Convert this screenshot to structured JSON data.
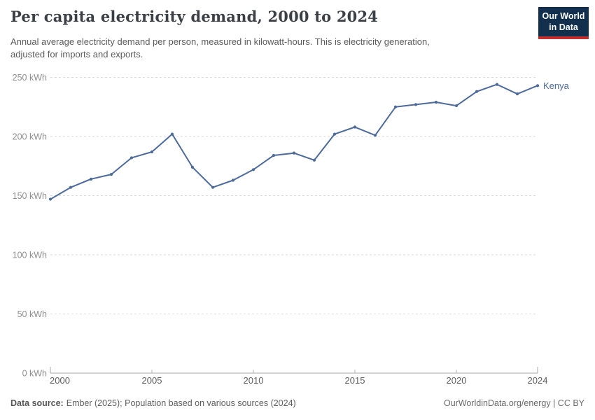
{
  "header": {
    "title": "Per capita electricity demand, 2000 to 2024",
    "subtitle_lines": {
      "line1": "Annual average electricity demand per person, measured in kilowatt-hours. This is electricity generation,",
      "line2": "adjusted for imports and exports."
    },
    "logo": {
      "line1": "Our World",
      "line2": "in Data",
      "bg_color": "#12304e",
      "stripe_color": "#c72f2f"
    }
  },
  "chart_data": {
    "type": "line",
    "title": "Per capita electricity demand, 2000 to 2024",
    "x": [
      2000,
      2001,
      2002,
      2003,
      2004,
      2005,
      2006,
      2007,
      2008,
      2009,
      2010,
      2011,
      2012,
      2013,
      2014,
      2015,
      2016,
      2017,
      2018,
      2019,
      2020,
      2021,
      2022,
      2023,
      2024
    ],
    "series": [
      {
        "name": "Kenya",
        "color": "#4c6a9c",
        "values": [
          147,
          157,
          164,
          168,
          182,
          187,
          202,
          174,
          157,
          163,
          172,
          184,
          186,
          180,
          202,
          208,
          201,
          225,
          227,
          229,
          226,
          238,
          244,
          236,
          243
        ]
      }
    ],
    "ylabel": "",
    "xlabel": "",
    "ylim": [
      0,
      250
    ],
    "yticks": [
      0,
      50,
      100,
      150,
      200,
      250
    ],
    "ytick_suffix": " kWh",
    "xticks": [
      2000,
      2005,
      2010,
      2015,
      2020,
      2024
    ],
    "grid": "horizontal-dashed",
    "legend_position": "end-of-line-label"
  },
  "footer": {
    "datasource_label": "Data source:",
    "datasource_text": "Ember (2025); Population based on various sources (2024)",
    "credit": "OurWorldinData.org/energy | CC BY"
  }
}
